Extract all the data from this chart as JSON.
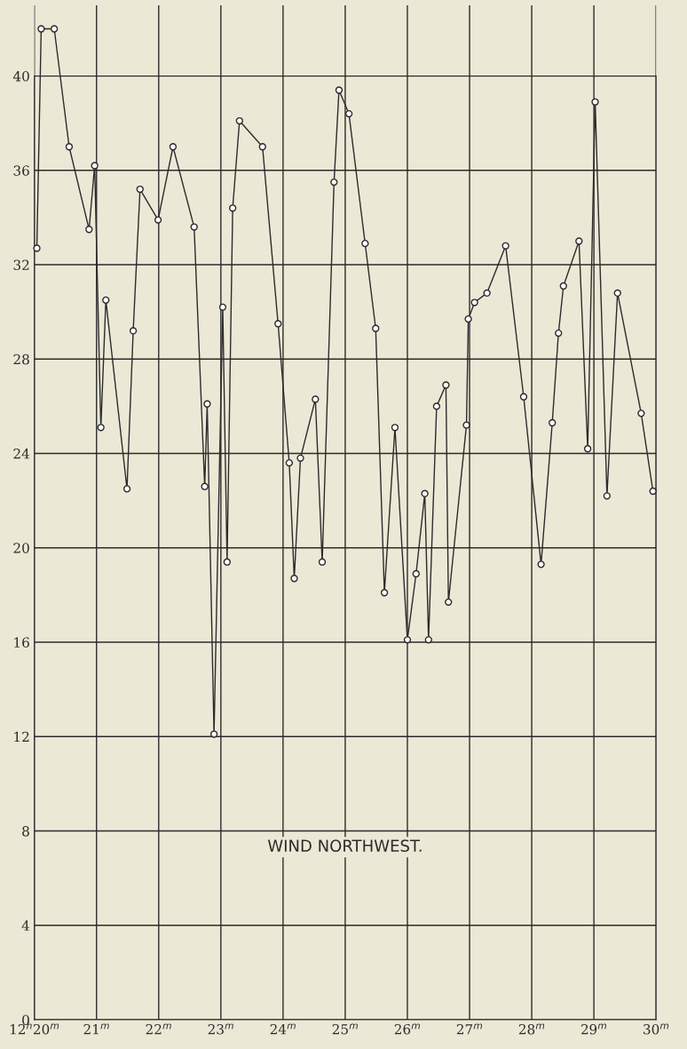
{
  "chart_data": {
    "type": "line",
    "annotations": [
      "WIND NORTHWEST."
    ],
    "x": [
      20.04,
      20.11,
      20.32,
      20.56,
      20.88,
      20.97,
      21.07,
      21.15,
      21.49,
      21.59,
      21.7,
      21.99,
      22.23,
      22.57,
      22.74,
      22.78,
      22.89,
      23.03,
      23.1,
      23.19,
      23.3,
      23.67,
      23.92,
      24.1,
      24.18,
      24.28,
      24.52,
      24.63,
      24.82,
      24.9,
      25.06,
      25.32,
      25.49,
      25.63,
      25.8,
      26.0,
      26.14,
      26.28,
      26.34,
      26.47,
      26.62,
      26.66,
      26.95,
      26.98,
      27.08,
      27.28,
      27.58,
      27.87,
      28.15,
      28.33,
      28.43,
      28.51,
      28.76,
      28.9,
      29.02,
      29.21,
      29.38,
      29.76,
      29.95
    ],
    "series": [
      {
        "color": "#2b2b2b",
        "values": [
          32.7,
          42.0,
          42.0,
          37.0,
          33.5,
          36.2,
          25.1,
          30.5,
          22.5,
          29.2,
          35.2,
          33.9,
          37.0,
          33.6,
          22.6,
          26.1,
          12.1,
          30.2,
          19.4,
          34.4,
          38.1,
          37.0,
          29.5,
          23.6,
          18.7,
          23.8,
          26.3,
          19.4,
          35.5,
          39.4,
          38.4,
          32.9,
          29.3,
          18.1,
          25.1,
          16.1,
          18.9,
          22.3,
          16.1,
          26.0,
          26.9,
          17.7,
          25.2,
          29.7,
          30.4,
          30.8,
          32.8,
          26.4,
          19.3,
          25.3,
          29.1,
          31.1,
          33.0,
          24.2,
          38.9,
          22.2,
          30.8,
          25.7,
          22.4
        ]
      }
    ],
    "xlim": [
      20,
      30
    ],
    "xticks": [
      {
        "value": 20,
        "label": "12$^{h}$20$^{m}$"
      },
      {
        "value": 21,
        "label": "21$^{m}$"
      },
      {
        "value": 22,
        "label": "22$^{m}$"
      },
      {
        "value": 23,
        "label": "23$^{m}$"
      },
      {
        "value": 24,
        "label": "24$^{m}$"
      },
      {
        "value": 25,
        "label": "25$^{m}$"
      },
      {
        "value": 26,
        "label": "26$^{m}$"
      },
      {
        "value": 27,
        "label": "27$^{m}$"
      },
      {
        "value": 28,
        "label": "28$^{m}$"
      },
      {
        "value": 29,
        "label": "29$^{m}$"
      },
      {
        "value": 30,
        "label": "30$^{m}$"
      }
    ],
    "ylim": [
      0,
      43
    ],
    "yticks": [
      0,
      4,
      8,
      12,
      16,
      20,
      24,
      28,
      32,
      36,
      40
    ],
    "grid": true,
    "marker": "circle",
    "line_style": "solid"
  }
}
